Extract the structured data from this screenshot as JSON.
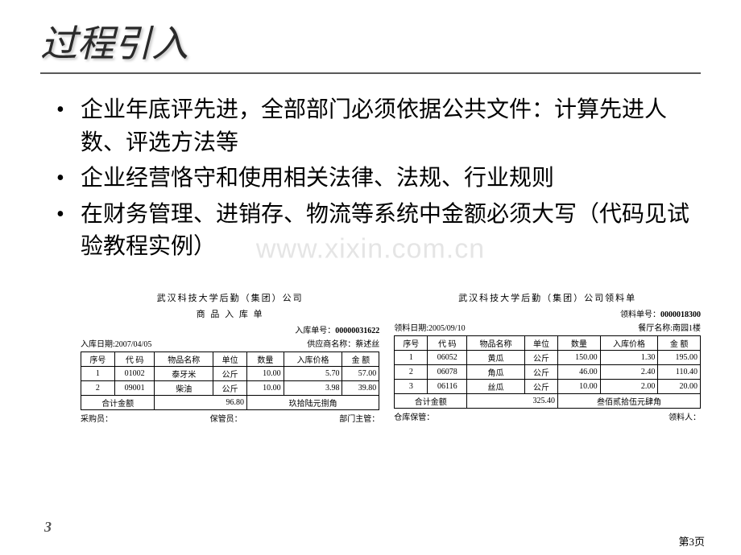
{
  "title": "过程引入",
  "bullets": [
    "企业年底评先进，全部部门必须依据公共文件：计算先进人数、评选方法等",
    "企业经营恪守和使用相关法律、法规、行业规则",
    "在财务管理、进销存、物流等系统中金额必须大写（代码见试验教程实例）"
  ],
  "watermark": "www.xixin.com.cn",
  "left_table": {
    "org": "武汉科技大学后勤（集团）公司",
    "doc_title": "商 品 入 库 单",
    "doc_no_label": "入库单号：",
    "doc_no": "00000031622",
    "date_label": "入库日期:",
    "date": "2007/04/05",
    "supplier_label": "供应商名称：",
    "supplier": "蔡述丝",
    "columns": [
      "序号",
      "代 码",
      "物品名称",
      "单位",
      "数量",
      "入库价格",
      "金 额"
    ],
    "rows": [
      [
        "1",
        "01002",
        "泰牙米",
        "公斤",
        "10.00",
        "5.70",
        "57.00"
      ],
      [
        "2",
        "09001",
        "柴油",
        "公斤",
        "10.00",
        "3.98",
        "39.80"
      ]
    ],
    "total_label": "合计金额",
    "total_value": "96.80",
    "total_cn": "玖拾陆元捌角",
    "footer_left": "采购员：",
    "footer_mid": "保管员：",
    "footer_right": "部门主管："
  },
  "right_table": {
    "org": "武汉科技大学后勤（集团）公司领料单",
    "doc_no_label": "领料单号：",
    "doc_no": "0000018300",
    "date_label": "领料日期:",
    "date": "2005/09/10",
    "dept_label": "餐厅名称:",
    "dept": "南园1楼",
    "columns": [
      "序号",
      "代 码",
      "物品名称",
      "单位",
      "数量",
      "入库价格",
      "金 额"
    ],
    "rows": [
      [
        "1",
        "06052",
        "黄瓜",
        "公斤",
        "150.00",
        "1.30",
        "195.00"
      ],
      [
        "2",
        "06078",
        "角瓜",
        "公斤",
        "46.00",
        "2.40",
        "110.40"
      ],
      [
        "3",
        "06116",
        "丝瓜",
        "公斤",
        "10.00",
        "2.00",
        "20.00"
      ]
    ],
    "total_label": "合计金额",
    "total_value": "325.40",
    "total_cn": "叁佰贰拾伍元肆角",
    "footer_left": "仓库保管：",
    "footer_right": "领料人："
  },
  "page_num": "3",
  "page_foot": "第3页"
}
